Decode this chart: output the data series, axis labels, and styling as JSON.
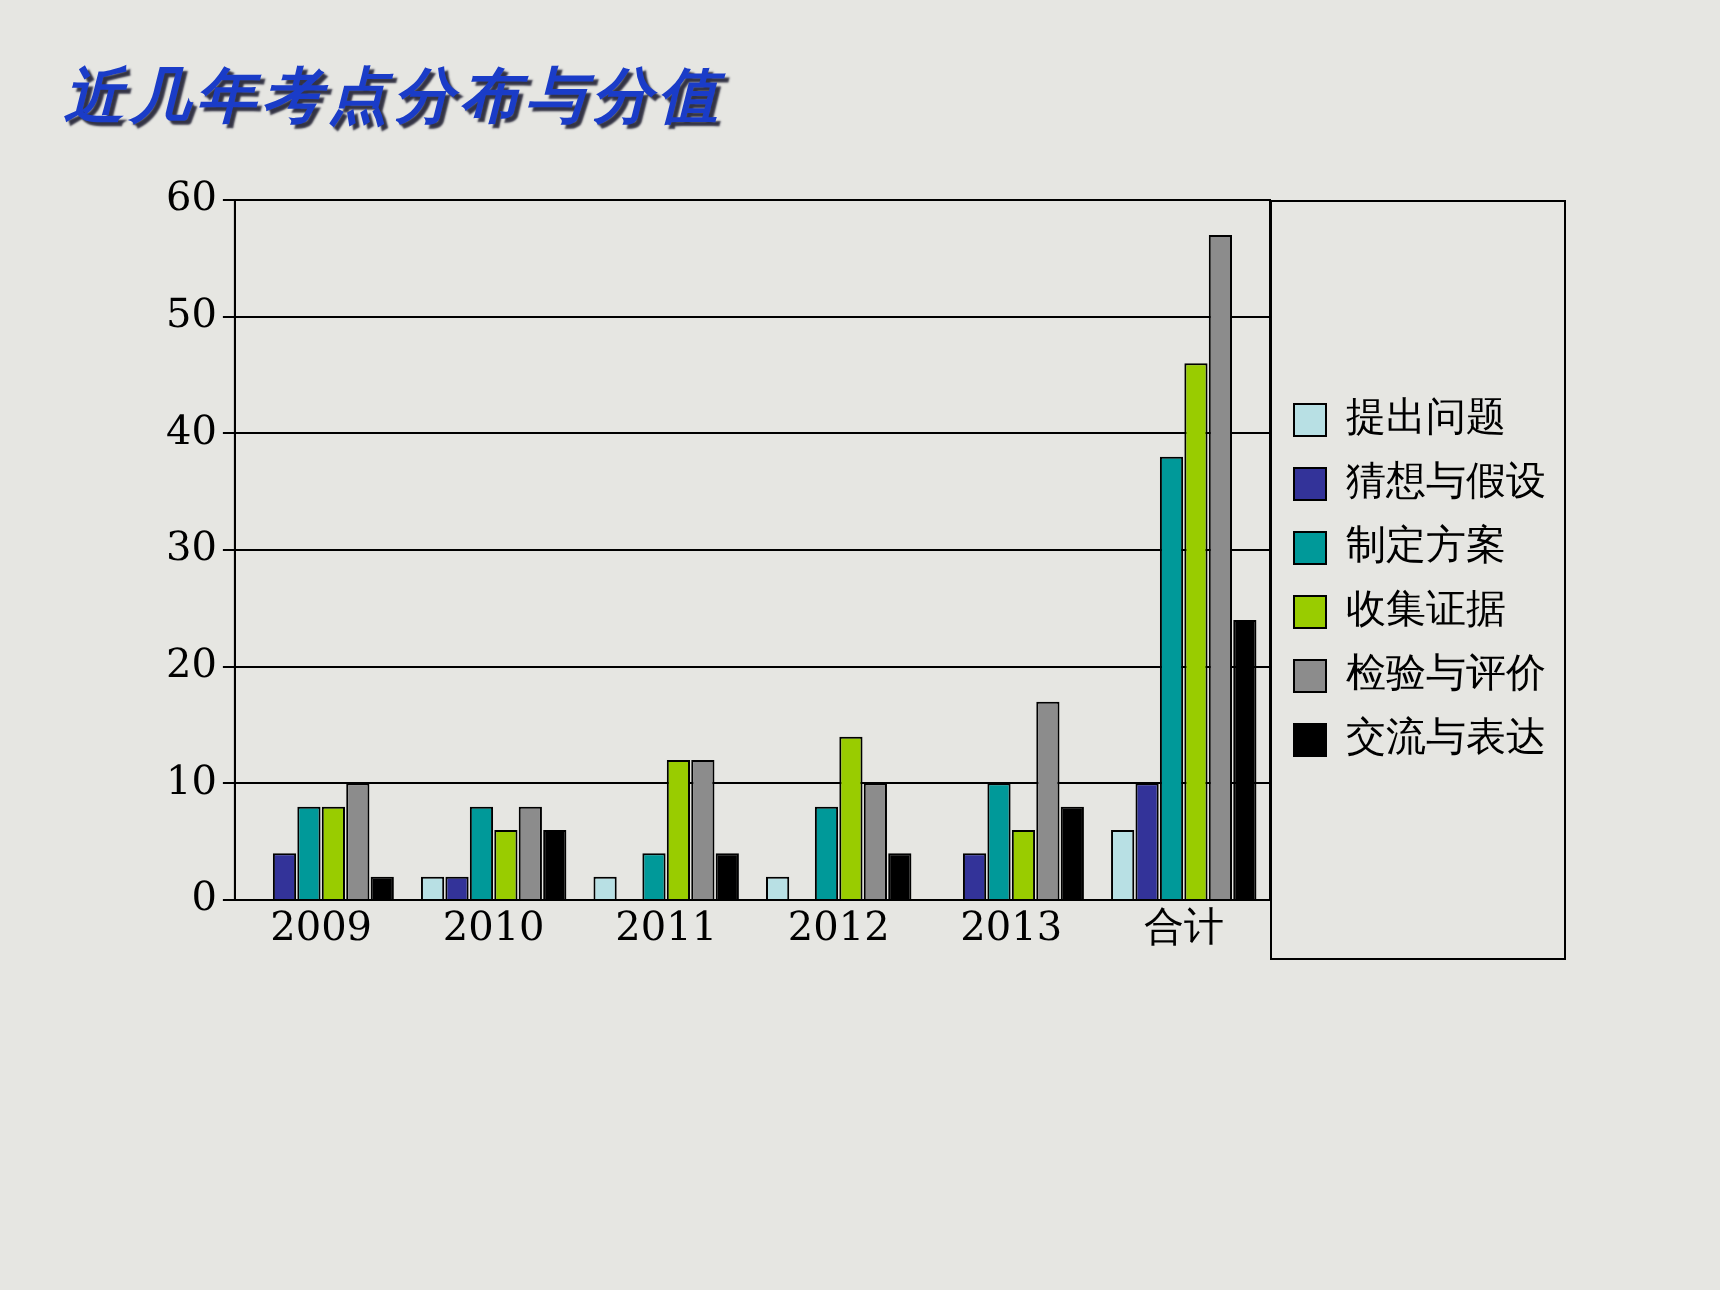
{
  "chart_data": {
    "type": "bar",
    "title": "近几年考点分布与分值",
    "categories": [
      "2009",
      "2010",
      "2011",
      "2012",
      "2013",
      "合计"
    ],
    "series": [
      {
        "name": "提出问题",
        "color": "#b8e0e4",
        "values": [
          0,
          2,
          2,
          2,
          0,
          6
        ]
      },
      {
        "name": "猜想与假设",
        "color": "#333399",
        "values": [
          4,
          2,
          0,
          0,
          4,
          10
        ]
      },
      {
        "name": "制定方案",
        "color": "#009999",
        "values": [
          8,
          8,
          4,
          8,
          10,
          38
        ]
      },
      {
        "name": "收集证据",
        "color": "#99cc00",
        "values": [
          8,
          6,
          12,
          14,
          6,
          46
        ]
      },
      {
        "name": "检验与评价",
        "color": "#8c8c8c",
        "values": [
          10,
          8,
          12,
          10,
          17,
          57
        ]
      },
      {
        "name": "交流与表达",
        "color": "#000000",
        "values": [
          2,
          6,
          4,
          4,
          8,
          24
        ]
      }
    ],
    "ylim": [
      0,
      60
    ],
    "yticks": [
      0,
      10,
      20,
      30,
      40,
      50,
      60
    ],
    "grid": "y",
    "legend": "right"
  }
}
